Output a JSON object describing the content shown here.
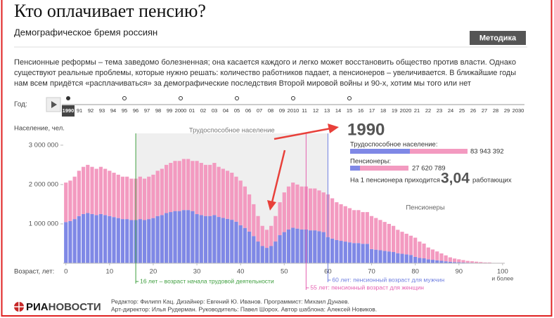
{
  "header": {
    "title": "Кто оплачивает пенсию?",
    "subtitle": "Демографическое бремя россиян",
    "button": "Методика",
    "intro": [
      "Пенсионные реформы – тема заведомо болезненная; она касается каждого и легко может восстановить общество против власти. Однако",
      "существуют реальные проблемы, которые нужно решать: количество работников падает, а пенсионеров – увеличивается. В ближайшие годы",
      "нам всем придётся «расплачиваться» за демографические последствия Второй мировой войны и 90-х, хотим мы того или нет"
    ]
  },
  "timeline": {
    "label": "Год:",
    "selected": 0,
    "years": [
      "1990",
      "91",
      "92",
      "93",
      "94",
      "95",
      "96",
      "97",
      "98",
      "99",
      "2000",
      "01",
      "02",
      "03",
      "04",
      "05",
      "06",
      "07",
      "08",
      "09",
      "2010",
      "11",
      "12",
      "13",
      "14",
      "15",
      "16",
      "17",
      "18",
      "19",
      "2020",
      "21",
      "22",
      "23",
      "24",
      "25",
      "26",
      "27",
      "28",
      "29",
      "2030"
    ]
  },
  "chart_data": {
    "type": "bar",
    "stacked": true,
    "ylabel": "Население, чел.",
    "xlabel": "Возраст, лет:",
    "xtick_note": "и более",
    "x": [
      0,
      1,
      2,
      3,
      4,
      5,
      6,
      7,
      8,
      9,
      10,
      11,
      12,
      13,
      14,
      15,
      16,
      17,
      18,
      19,
      20,
      21,
      22,
      23,
      24,
      25,
      26,
      27,
      28,
      29,
      30,
      31,
      32,
      33,
      34,
      35,
      36,
      37,
      38,
      39,
      40,
      41,
      42,
      43,
      44,
      45,
      46,
      47,
      48,
      49,
      50,
      51,
      52,
      53,
      54,
      55,
      56,
      57,
      58,
      59,
      60,
      61,
      62,
      63,
      64,
      65,
      66,
      67,
      68,
      69,
      70,
      71,
      72,
      73,
      74,
      75,
      76,
      77,
      78,
      79,
      80,
      81,
      82,
      83,
      84,
      85,
      86,
      87,
      88,
      89,
      90,
      91,
      92,
      93,
      94,
      95,
      96,
      97,
      98,
      99,
      100
    ],
    "xlim": [
      -0.6,
      100.5
    ],
    "xticks": [
      0,
      10,
      20,
      30,
      40,
      50,
      60,
      70,
      80,
      90,
      100
    ],
    "ylim": [
      0,
      3300000
    ],
    "yticks": [
      {
        "value": 1000000,
        "label": "1 000 000"
      },
      {
        "value": 2000000,
        "label": "2 000 000"
      },
      {
        "value": 3000000,
        "label": "3 000 000"
      }
    ],
    "series": [
      {
        "color": "#7f88e6",
        "values": [
          1046000,
          1071000,
          1122000,
          1199000,
          1250000,
          1275000,
          1250000,
          1224000,
          1250000,
          1224000,
          1199000,
          1173000,
          1148000,
          1122000,
          1122000,
          1097000,
          1097000,
          1122000,
          1097000,
          1122000,
          1148000,
          1199000,
          1224000,
          1275000,
          1301000,
          1326000,
          1326000,
          1352000,
          1352000,
          1326000,
          1248000,
          1224000,
          1200000,
          1200000,
          1224000,
          1176000,
          1152000,
          1128000,
          1104000,
          1056000,
          966000,
          897000,
          805000,
          690000,
          552000,
          437000,
          391000,
          437000,
          552000,
          713000,
          792000,
          858000,
          902000,
          880000,
          858000,
          858000,
          836000,
          836000,
          814000,
          792000,
          665000,
          627000,
          589000,
          570000,
          551000,
          532000,
          513000,
          513000,
          494000,
          494000,
          360000,
          345000,
          330000,
          315000,
          300000,
          285000,
          255000,
          240000,
          225000,
          210000,
          163000,
          138000,
          125000,
          100000,
          88000,
          75000,
          63000,
          50000,
          38000,
          30000,
          25000,
          20000,
          15000,
          13000,
          10000,
          8000,
          5000,
          5000,
          3000,
          3000,
          3000
        ]
      },
      {
        "color": "#f39ac0",
        "values": [
          1004000,
          1029000,
          1078000,
          1151000,
          1200000,
          1225000,
          1200000,
          1176000,
          1200000,
          1176000,
          1151000,
          1127000,
          1102000,
          1078000,
          1078000,
          1053000,
          1053000,
          1078000,
          1053000,
          1078000,
          1102000,
          1151000,
          1176000,
          1225000,
          1249000,
          1274000,
          1274000,
          1298000,
          1298000,
          1274000,
          1352000,
          1326000,
          1300000,
          1300000,
          1326000,
          1274000,
          1248000,
          1222000,
          1196000,
          1144000,
          1134000,
          1053000,
          945000,
          810000,
          648000,
          513000,
          459000,
          513000,
          648000,
          837000,
          1008000,
          1092000,
          1148000,
          1120000,
          1092000,
          1092000,
          1064000,
          1064000,
          1036000,
          1008000,
          1085000,
          1023000,
          961000,
          930000,
          899000,
          868000,
          837000,
          837000,
          806000,
          806000,
          840000,
          805000,
          770000,
          735000,
          700000,
          665000,
          595000,
          560000,
          525000,
          490000,
          487000,
          412000,
          375000,
          300000,
          262000,
          225000,
          187000,
          150000,
          112000,
          90000,
          75000,
          60000,
          45000,
          37000,
          30000,
          22000,
          15000,
          15000,
          7000,
          7000,
          7000
        ]
      }
    ],
    "band": {
      "label": "Трудоспособное население",
      "from": 16,
      "to": 60
    },
    "region_label": "Пенсионеры",
    "markers": [
      {
        "age": 16,
        "color": "#3d9e3d",
        "label": "16 лет – возраст начала трудовой деятельности"
      },
      {
        "age": 60,
        "color": "#6f7fe0",
        "label": "60 лет: пенсионный возраст для мужчин"
      },
      {
        "age": 55,
        "color": "#e55fb0",
        "label": "55 лет: пенсионный возраст для женщин"
      }
    ]
  },
  "info": {
    "year": "1990",
    "working_label": "Трудоспособное население:",
    "working_value": "83 943 392",
    "pension_label": "Пенсионеры:",
    "pension_value": "27 620 789",
    "ratio_prefix": "На 1 пенсионера приходится",
    "ratio": "3,04",
    "ratio_suffix": "работающих"
  },
  "footer": {
    "logo_a": "РИА",
    "logo_b": "НОВОСТИ",
    "credits": [
      "Редактор: Филипп Кац. Дизайнер: Евгений Ю. Иванов. Программист: Михаил Дунаев.",
      "Арт-директор: Илья Рудерман. Руководитель: Павел Шорох. Автор шаблона: Алексей Новиков."
    ]
  }
}
